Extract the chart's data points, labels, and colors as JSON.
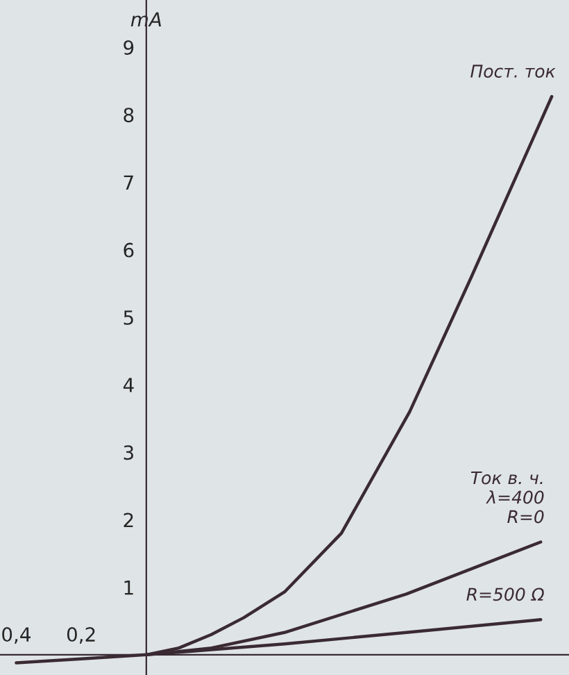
{
  "chart_data": {
    "type": "line",
    "ylabel": "mA",
    "xlim": [
      -0.45,
      1.3
    ],
    "ylim": [
      -0.3,
      9.7
    ],
    "xticks": [
      {
        "value": -0.4,
        "label": "0,4"
      },
      {
        "value": -0.2,
        "label": "0,2"
      }
    ],
    "yticks": [
      1,
      2,
      3,
      4,
      5,
      6,
      7,
      8,
      9
    ],
    "grid": false,
    "legend": false,
    "marker": "none",
    "line_style": "solid",
    "series": [
      {
        "name": "Пост. ток",
        "color": "#3a2a32",
        "x": [
          -0.4,
          -0.2,
          0,
          0.1,
          0.2,
          0.3,
          0.425,
          0.6,
          0.81,
          1.0,
          1.247
        ],
        "values": [
          -0.12,
          -0.06,
          0,
          0.1,
          0.3,
          0.55,
          0.93,
          1.8,
          3.6,
          5.6,
          8.27
        ]
      },
      {
        "name": "Ток в. ч.\nλ=400\nR=0",
        "color": "#3a2a32",
        "x": [
          0,
          0.2,
          0.425,
          0.8,
          1.213
        ],
        "values": [
          0,
          0.1,
          0.33,
          0.9,
          1.67
        ]
      },
      {
        "name": "R=500 Ω",
        "color": "#3a2a32",
        "x": [
          0,
          0.425,
          0.8,
          1.213
        ],
        "values": [
          0,
          0.16,
          0.33,
          0.52
        ]
      }
    ]
  }
}
